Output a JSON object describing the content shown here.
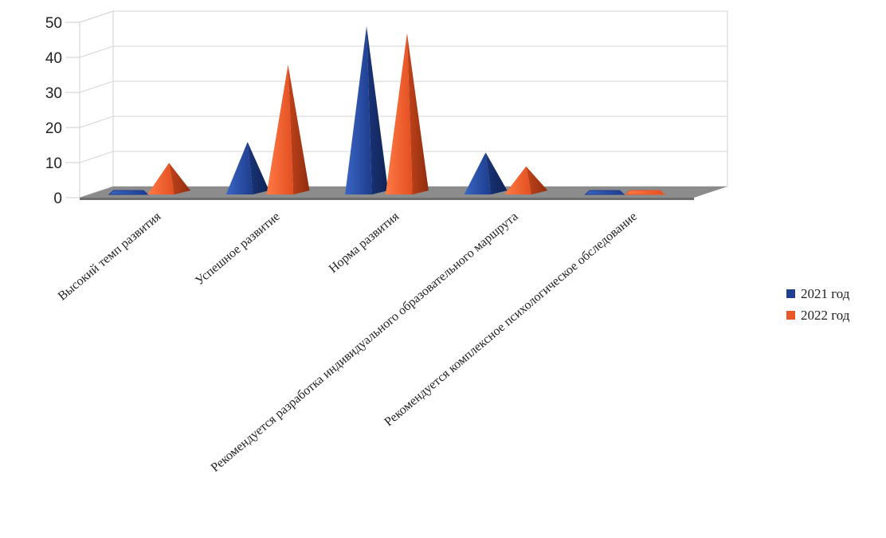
{
  "chart_data": {
    "type": "bar",
    "style": "3d-pyramid",
    "categories": [
      "Высокий темп развития",
      "Успешное развитие",
      "Норма развития",
      "Рекомендуется разработка индивидуального образовательного маршрута",
      "Рекомендуется комплексное психологическое обследование"
    ],
    "series": [
      {
        "name": "2021 год",
        "color": "#1F3F8F",
        "values": [
          0,
          15,
          48,
          12,
          0
        ]
      },
      {
        "name": "2022 год",
        "color": "#E8582A",
        "values": [
          9,
          37,
          46,
          8,
          0
        ]
      }
    ],
    "yticks": [
      "0",
      "10",
      "20",
      "30",
      "40",
      "50"
    ],
    "ylim": [
      0,
      50
    ],
    "grid": true,
    "legend_position": "right"
  }
}
